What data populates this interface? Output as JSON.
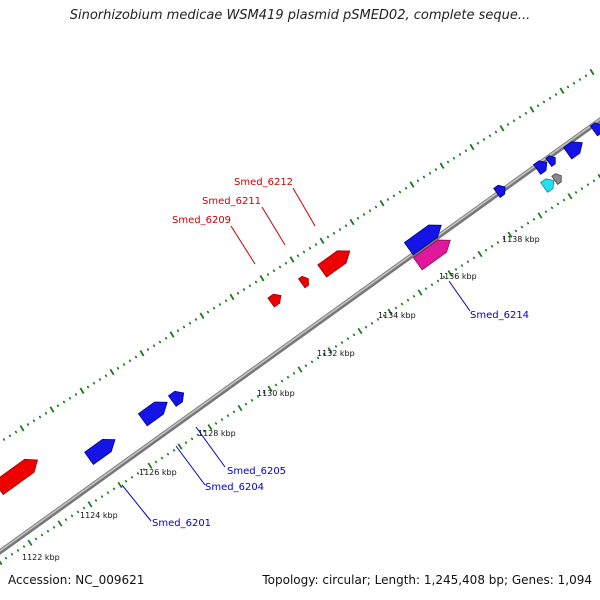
{
  "title": "Sinorhizobium medicae WSM419 plasmid pSMED02, complete seque...",
  "footer": {
    "accession": "Accession: NC_009621",
    "summary": "Topology: circular; Length: 1,245,408 bp; Genes: 1,094"
  },
  "scale_labels": [
    "1122 kbp",
    "1124 kbp",
    "1126 kbp",
    "1128 kbp",
    "1130 kbp",
    "1132 kbp",
    "1134 kbp",
    "1136 kbp",
    "1138 kbp"
  ],
  "gene_labels": {
    "forward": [
      "Smed_6209",
      "Smed_6211",
      "Smed_6212"
    ],
    "reverse": [
      "Smed_6201",
      "Smed_6204",
      "Smed_6205",
      "Smed_6214"
    ]
  },
  "colors": {
    "forward_label": "#cc0000",
    "reverse_label": "#0000cc",
    "tick": "#1a7a1a",
    "backbone": "#8a8a8a"
  }
}
